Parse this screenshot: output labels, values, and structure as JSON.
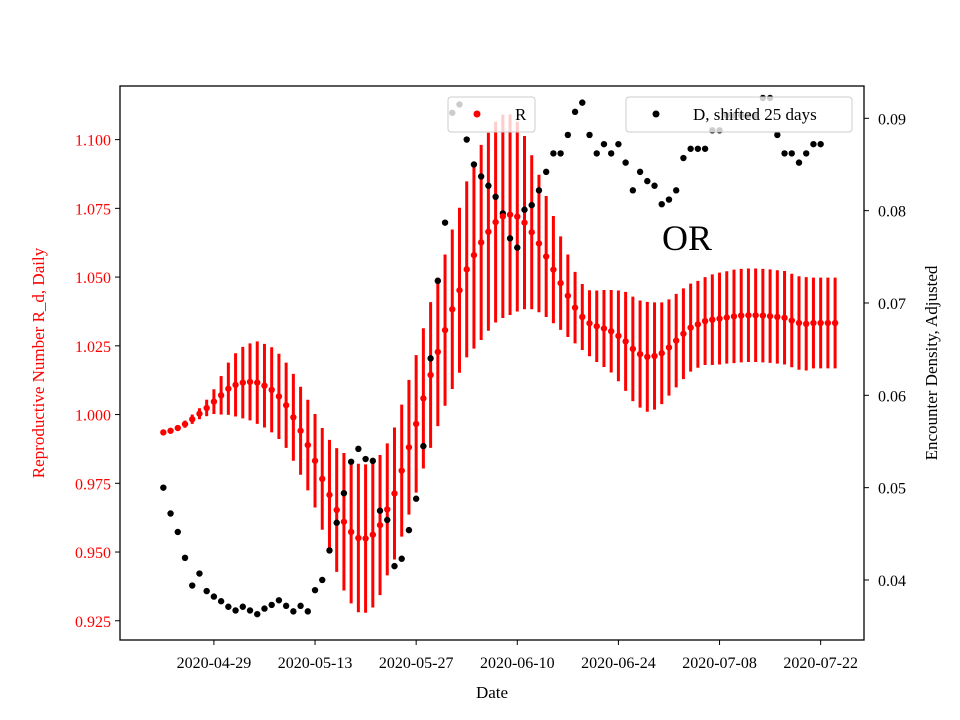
{
  "chart_data": {
    "type": "scatter",
    "annotation": "OR",
    "xlabel": "Date",
    "ylabel_left": "Reproductive Number R_d, Daily",
    "ylabel_right": "Encounter Density, Adjusted",
    "x_start_date": "2020-04-22",
    "x_end_date": "2020-07-24",
    "xlim": [
      "2020-04-16",
      "2020-07-28"
    ],
    "x_ticks": [
      "2020-04-29",
      "2020-05-13",
      "2020-05-27",
      "2020-06-10",
      "2020-06-24",
      "2020-07-08",
      "2020-07-22"
    ],
    "ylim_left": [
      0.918,
      1.1195
    ],
    "ylim_right": [
      0.0335,
      0.0935
    ],
    "yticks_left": [
      "0.925",
      "0.950",
      "0.975",
      "1.000",
      "1.025",
      "1.050",
      "1.075",
      "1.100"
    ],
    "yticks_right": [
      "0.04",
      "0.05",
      "0.06",
      "0.07",
      "0.08",
      "0.09"
    ],
    "colors": {
      "R": "#ff0000",
      "D": "#000000",
      "left_axis_text": "#ff0000"
    },
    "legend_R": {
      "label": "R",
      "placement": "top-center"
    },
    "legend_D": {
      "label": "D, shifted 25 days",
      "placement": "top-right"
    },
    "series": [
      {
        "name": "R",
        "axis": "left",
        "values": [
          0.9935,
          0.9941,
          0.9951,
          0.9965,
          0.9983,
          1.0003,
          1.0024,
          1.0047,
          1.007,
          1.0094,
          1.0108,
          1.0116,
          1.0119,
          1.0116,
          1.0105,
          1.009,
          1.0066,
          1.0034,
          0.999,
          0.9941,
          0.9889,
          0.9832,
          0.9766,
          0.9708,
          0.9653,
          0.961,
          0.9573,
          0.9551,
          0.9549,
          0.9563,
          0.9598,
          0.9655,
          0.9713,
          0.9796,
          0.9881,
          0.9966,
          1.0059,
          1.0144,
          1.0228,
          1.0307,
          1.0383,
          1.0452,
          1.0528,
          1.058,
          1.0626,
          1.0665,
          1.07,
          1.0721,
          1.0727,
          1.072,
          1.0698,
          1.0663,
          1.0622,
          1.0575,
          1.0527,
          1.0478,
          1.0432,
          1.0389,
          1.0355,
          1.0332,
          1.0321,
          1.0313,
          1.0303,
          1.0286,
          1.0266,
          1.0239,
          1.022,
          1.021,
          1.0213,
          1.0223,
          1.0244,
          1.0269,
          1.0294,
          1.0316,
          1.0328,
          1.034,
          1.0345,
          1.0349,
          1.0353,
          1.0357,
          1.036,
          1.0361,
          1.0361,
          1.036,
          1.0358,
          1.0355,
          1.0352,
          1.0342,
          1.0333,
          1.033,
          1.0333,
          1.0333,
          1.0333,
          1.0333
        ],
        "error_half_width": [
          0.0005,
          0.0007,
          0.001,
          0.0013,
          0.0017,
          0.002,
          0.003,
          0.0045,
          0.007,
          0.0095,
          0.0115,
          0.013,
          0.014,
          0.015,
          0.0152,
          0.0155,
          0.0155,
          0.0155,
          0.0158,
          0.016,
          0.0165,
          0.017,
          0.0185,
          0.02,
          0.0225,
          0.025,
          0.026,
          0.027,
          0.027,
          0.0265,
          0.0255,
          0.024,
          0.024,
          0.024,
          0.0245,
          0.025,
          0.0255,
          0.0265,
          0.027,
          0.0275,
          0.029,
          0.03,
          0.032,
          0.034,
          0.0355,
          0.036,
          0.0365,
          0.037,
          0.0365,
          0.0345,
          0.0315,
          0.028,
          0.025,
          0.022,
          0.0195,
          0.017,
          0.015,
          0.013,
          0.012,
          0.012,
          0.013,
          0.014,
          0.015,
          0.0165,
          0.018,
          0.019,
          0.0195,
          0.02,
          0.0195,
          0.0185,
          0.0175,
          0.017,
          0.0165,
          0.016,
          0.0158,
          0.016,
          0.0165,
          0.0167,
          0.0168,
          0.017,
          0.017,
          0.017,
          0.017,
          0.017,
          0.017,
          0.017,
          0.017,
          0.017,
          0.017,
          0.017,
          0.0165,
          0.0165,
          0.0165,
          0.0165
        ]
      },
      {
        "name": "D, shifted 25 days",
        "axis": "right",
        "values": [
          0.05,
          0.0472,
          0.0452,
          0.0424,
          0.0394,
          0.0407,
          0.0388,
          0.0382,
          0.0377,
          0.0371,
          0.0367,
          0.0371,
          0.0367,
          0.0363,
          0.0369,
          0.0373,
          0.0378,
          0.0372,
          0.0366,
          0.0372,
          0.0366,
          0.0389,
          0.04,
          0.0432,
          0.0462,
          0.0494,
          0.0528,
          0.0542,
          0.0531,
          0.0529,
          0.0475,
          0.0465,
          0.0415,
          0.0423,
          0.0454,
          0.0488,
          0.0545,
          0.064,
          0.0724,
          0.0787,
          0.0906,
          0.0915,
          0.0877,
          0.085,
          0.0837,
          0.0827,
          0.0815,
          0.0797,
          0.077,
          0.076,
          0.0801,
          0.0806,
          0.0822,
          0.0842,
          0.0862,
          0.0862,
          0.0882,
          0.0907,
          0.0917,
          0.0882,
          0.0862,
          0.0872,
          0.0862,
          0.0872,
          0.0852,
          0.0822,
          0.0842,
          0.0832,
          0.0827,
          0.0807,
          0.0812,
          0.0822,
          0.0857,
          0.0867,
          0.0867,
          0.0867,
          0.0887,
          0.0887,
          0.0903,
          0.0903,
          0.0903,
          0.0903,
          0.0903,
          0.0922,
          0.0922,
          0.0882,
          0.0862,
          0.0862,
          0.0852,
          0.0862,
          0.0872,
          0.0872
        ]
      }
    ]
  }
}
